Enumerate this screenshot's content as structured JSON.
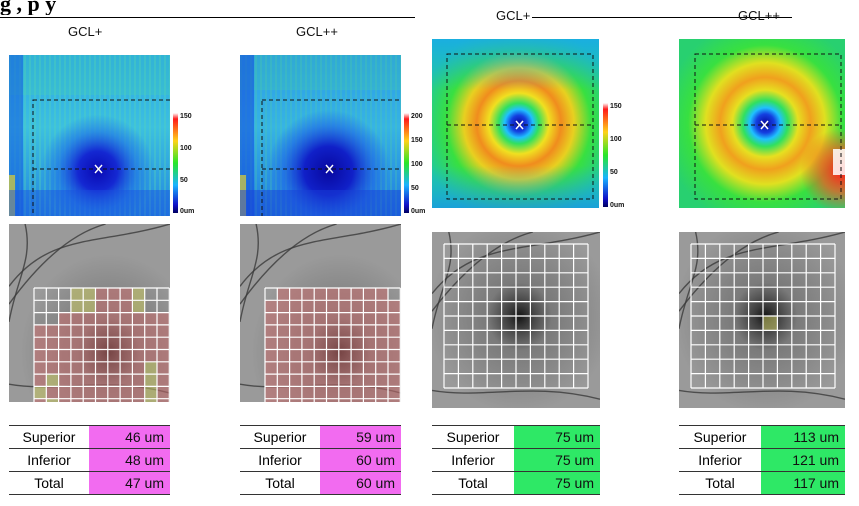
{
  "caption": {
    "text": "g                                   , p                                           y"
  },
  "panels": [
    {
      "label": "GCL+",
      "scale_ticks": [
        "150",
        "100",
        "50",
        "0um"
      ],
      "table": [
        {
          "label": "Superior",
          "value": "46 um"
        },
        {
          "label": "Inferior",
          "value": "48 um"
        },
        {
          "label": "Total",
          "value": "47 um"
        }
      ],
      "value_color": "#f26bf0"
    },
    {
      "label": "GCL++",
      "scale_ticks": [
        "200",
        "150",
        "100",
        "50",
        "0um"
      ],
      "table": [
        {
          "label": "Superior",
          "value": "59 um"
        },
        {
          "label": "Inferior",
          "value": "60 um"
        },
        {
          "label": "Total",
          "value": "60 um"
        }
      ],
      "value_color": "#f26bf0"
    },
    {
      "label": "GCL+",
      "scale_ticks": [
        "150",
        "100",
        "50",
        "0um"
      ],
      "table": [
        {
          "label": "Superior",
          "value": "75 um"
        },
        {
          "label": "Inferior",
          "value": "75 um"
        },
        {
          "label": "Total",
          "value": "75 um"
        }
      ],
      "value_color": "#2ee866"
    },
    {
      "label": "GCL++",
      "scale_ticks": [],
      "table": [
        {
          "label": "Superior",
          "value": "113 um"
        },
        {
          "label": "Inferior",
          "value": "121 um"
        },
        {
          "label": "Total",
          "value": "117 um"
        }
      ],
      "value_color": "#2ee866"
    }
  ],
  "colors": {
    "abnormal": "#f26bf0",
    "normal": "#2ee866",
    "grid_line": "#ffffff",
    "sector_red": "#c86e6e",
    "sector_yellow": "#c8c864",
    "thickness_gradient": [
      "#000060",
      "#1010c8",
      "#1ab4ff",
      "#28e628",
      "#ffd21a",
      "#ff1a1a",
      "#ffffff"
    ]
  }
}
